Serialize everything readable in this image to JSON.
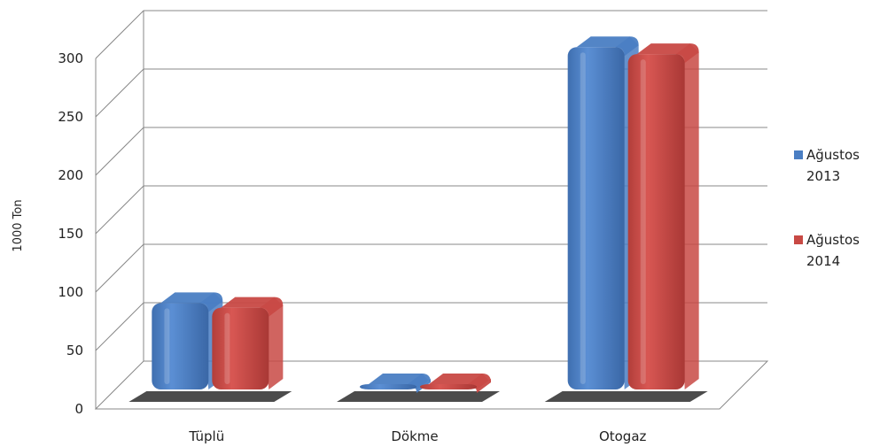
{
  "chart_data": {
    "type": "bar",
    "title": "",
    "xlabel": "",
    "ylabel": "1000 Ton",
    "ylim": [
      0,
      300
    ],
    "yticks": [
      0,
      50,
      100,
      150,
      200,
      250,
      300
    ],
    "grid": true,
    "legend_position": "right",
    "categories": [
      "Tüplü",
      "Dökme",
      "Otogaz"
    ],
    "series": [
      {
        "name_lines": [
          "Ağustos",
          "2013"
        ],
        "color": "#4A7EC3",
        "values": [
          74,
          1,
          293
        ]
      },
      {
        "name_lines": [
          "Ağustos",
          "2014"
        ],
        "color": "#C84944",
        "values": [
          70,
          1,
          287
        ]
      }
    ]
  }
}
